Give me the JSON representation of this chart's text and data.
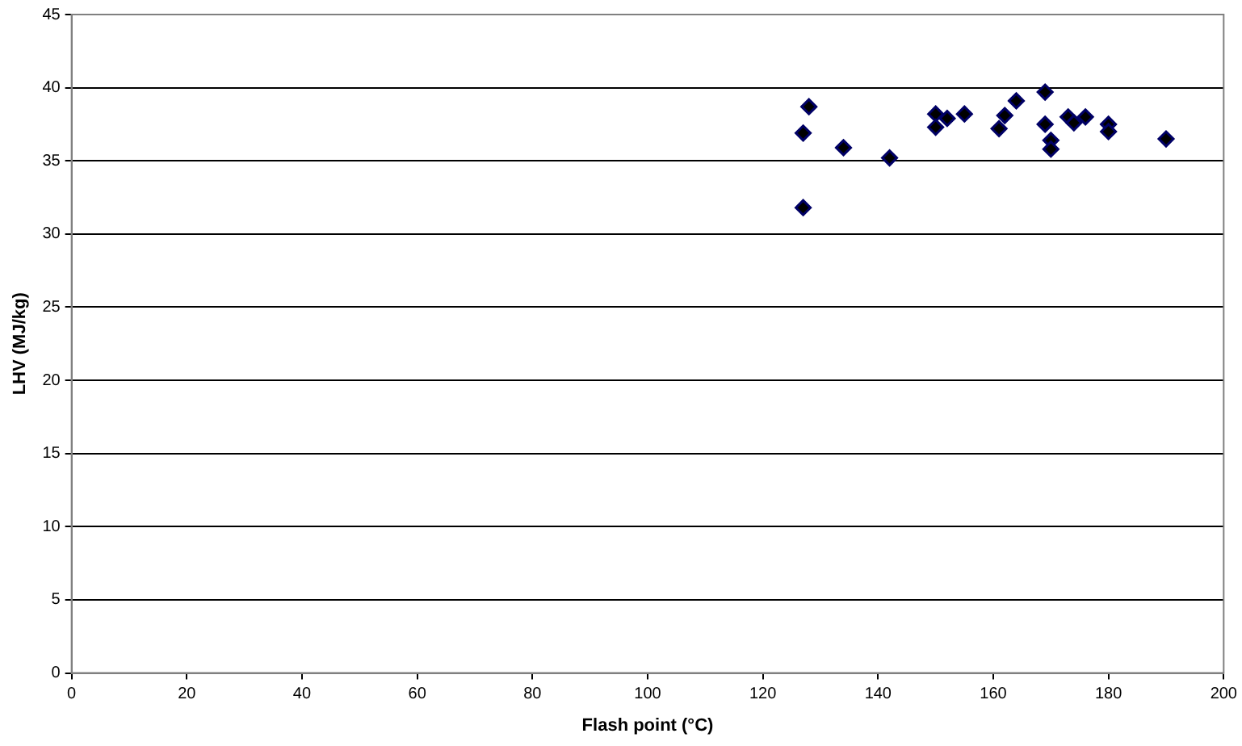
{
  "chart_data": {
    "type": "scatter",
    "xlabel": "Flash point (°C)",
    "ylabel": "LHV (MJ/kg)",
    "x": [
      127,
      128,
      127,
      134,
      142,
      150,
      150,
      152,
      155,
      161,
      162,
      164,
      169,
      169,
      170,
      170,
      173,
      174,
      176,
      180,
      180,
      190
    ],
    "series": [
      {
        "color": "#000066",
        "values": [
          36.9,
          38.7,
          31.8,
          35.9,
          35.2,
          38.2,
          37.3,
          37.9,
          38.2,
          37.2,
          38.1,
          39.1,
          39.7,
          37.5,
          36.4,
          35.8,
          38.0,
          37.6,
          38.0,
          37.5,
          37.0,
          36.5
        ]
      }
    ],
    "xlim": [
      0,
      200
    ],
    "xticks": [
      0,
      20,
      40,
      60,
      80,
      100,
      120,
      140,
      160,
      180,
      200
    ],
    "ylim": [
      0,
      45
    ],
    "yticks": [
      0,
      5,
      10,
      15,
      20,
      25,
      30,
      35,
      40,
      45
    ],
    "grid": "y",
    "legend": false,
    "marker": "diamond"
  }
}
